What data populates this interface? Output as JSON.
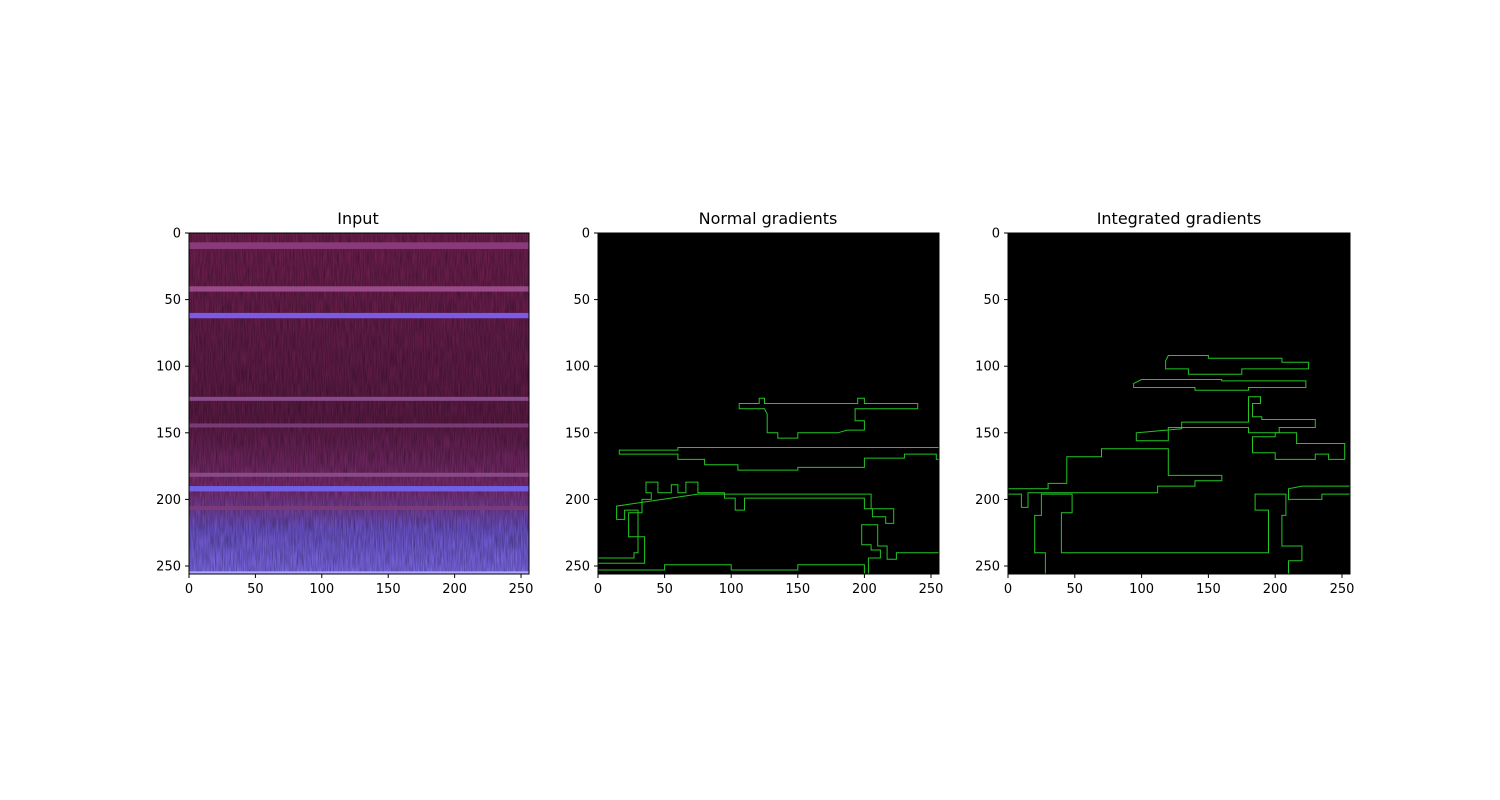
{
  "chart_data": [
    {
      "type": "heatmap",
      "title": "Input",
      "xlim": [
        0,
        256
      ],
      "ylim": [
        256,
        0
      ],
      "xticks": [
        0,
        50,
        100,
        150,
        200,
        250
      ],
      "yticks": [
        0,
        50,
        100,
        150,
        200,
        250
      ],
      "bands": [
        {
          "y": 7,
          "h": 5,
          "color": "#8a3a78"
        },
        {
          "y": 40,
          "h": 4,
          "color": "#9a4a88"
        },
        {
          "y": 60,
          "h": 4,
          "color": "#7a5ae6"
        },
        {
          "y": 123,
          "h": 3,
          "color": "#8a4a8a"
        },
        {
          "y": 143,
          "h": 3,
          "color": "#7a3a78"
        },
        {
          "y": 180,
          "h": 3,
          "color": "#8a4a8a"
        },
        {
          "y": 190,
          "h": 4,
          "color": "#7060e8"
        },
        {
          "y": 205,
          "h": 3,
          "color": "#7a3a78"
        },
        {
          "y": 254,
          "h": 2,
          "color": "#b0a8ff"
        }
      ]
    },
    {
      "type": "heatmap",
      "title": "Normal gradients",
      "xlim": [
        0,
        256
      ],
      "ylim": [
        256,
        0
      ],
      "xticks": [
        0,
        50,
        100,
        150,
        200,
        250
      ],
      "yticks": [
        0,
        50,
        100,
        150,
        200,
        250
      ],
      "contour_color": "#22c522",
      "contours": [
        [
          [
            106,
            128
          ],
          [
            106,
            132
          ],
          [
            125,
            132
          ],
          [
            127,
            136
          ],
          [
            127,
            150
          ],
          [
            135,
            150
          ],
          [
            135,
            154
          ],
          [
            150,
            154
          ],
          [
            150,
            150
          ],
          [
            165,
            150
          ],
          [
            180,
            150
          ],
          [
            187,
            148
          ],
          [
            200,
            148
          ],
          [
            200,
            141
          ],
          [
            193,
            141
          ],
          [
            193,
            132
          ],
          [
            240,
            132
          ],
          [
            240,
            128
          ],
          [
            200,
            128
          ],
          [
            200,
            124
          ],
          [
            195,
            124
          ],
          [
            195,
            128
          ],
          [
            125,
            128
          ],
          [
            125,
            124
          ],
          [
            121,
            124
          ],
          [
            121,
            128
          ]
        ],
        [
          [
            16,
            163
          ],
          [
            16,
            166
          ],
          [
            60,
            166
          ],
          [
            60,
            170
          ],
          [
            80,
            170
          ],
          [
            80,
            174
          ],
          [
            105,
            174
          ],
          [
            105,
            178
          ],
          [
            150,
            178
          ],
          [
            150,
            176
          ],
          [
            200,
            176
          ],
          [
            200,
            169
          ],
          [
            230,
            169
          ],
          [
            230,
            166
          ],
          [
            254,
            166
          ],
          [
            254,
            170
          ],
          [
            256,
            170
          ],
          [
            256,
            161
          ],
          [
            60,
            161
          ],
          [
            60,
            163
          ]
        ],
        [
          [
            14,
            205
          ],
          [
            14,
            215
          ],
          [
            20,
            215
          ],
          [
            20,
            208
          ],
          [
            30,
            208
          ],
          [
            30,
            240
          ],
          [
            27,
            240
          ],
          [
            27,
            244
          ],
          [
            0,
            244
          ],
          [
            0,
            248
          ],
          [
            35,
            248
          ],
          [
            35,
            228
          ],
          [
            23,
            228
          ],
          [
            23,
            210
          ],
          [
            33,
            210
          ],
          [
            33,
            200
          ],
          [
            40,
            200
          ],
          [
            40,
            195
          ],
          [
            36,
            195
          ],
          [
            36,
            187
          ],
          [
            45,
            187
          ],
          [
            45,
            195
          ],
          [
            55,
            195
          ],
          [
            55,
            189
          ],
          [
            60,
            189
          ],
          [
            60,
            195
          ],
          [
            66,
            195
          ],
          [
            66,
            187
          ],
          [
            75,
            187
          ],
          [
            75,
            195
          ],
          [
            95,
            195
          ],
          [
            95,
            199
          ],
          [
            103,
            199
          ],
          [
            103,
            208
          ],
          [
            110,
            208
          ],
          [
            110,
            199
          ],
          [
            200,
            199
          ],
          [
            200,
            207
          ],
          [
            206,
            207
          ],
          [
            206,
            213
          ],
          [
            216,
            213
          ],
          [
            216,
            218
          ],
          [
            222,
            218
          ],
          [
            222,
            207
          ],
          [
            205,
            207
          ],
          [
            205,
            196
          ],
          [
            75,
            196
          ]
        ],
        [
          [
            198,
            219
          ],
          [
            198,
            234
          ],
          [
            205,
            234
          ],
          [
            205,
            238
          ],
          [
            212,
            238
          ],
          [
            212,
            244
          ],
          [
            203,
            244
          ],
          [
            203,
            256
          ],
          [
            256,
            256
          ],
          [
            256,
            240
          ],
          [
            224,
            240
          ],
          [
            224,
            245
          ],
          [
            217,
            245
          ],
          [
            217,
            235
          ],
          [
            210,
            235
          ],
          [
            210,
            219
          ]
        ],
        [
          [
            0,
            250
          ],
          [
            0,
            256
          ],
          [
            200,
            256
          ],
          [
            200,
            249
          ],
          [
            150,
            249
          ],
          [
            150,
            253
          ],
          [
            100,
            253
          ],
          [
            100,
            249
          ],
          [
            50,
            249
          ],
          [
            50,
            253
          ],
          [
            0,
            253
          ]
        ]
      ]
    },
    {
      "type": "heatmap",
      "title": "Integrated gradients",
      "xlim": [
        0,
        256
      ],
      "ylim": [
        256,
        0
      ],
      "xticks": [
        0,
        50,
        100,
        150,
        200,
        250
      ],
      "yticks": [
        0,
        50,
        100,
        150,
        200,
        250
      ],
      "contour_color": "#22c522",
      "contours": [
        [
          [
            118,
            96
          ],
          [
            118,
            102
          ],
          [
            135,
            102
          ],
          [
            135,
            106
          ],
          [
            175,
            106
          ],
          [
            175,
            102
          ],
          [
            225,
            102
          ],
          [
            225,
            97
          ],
          [
            205,
            97
          ],
          [
            205,
            94
          ],
          [
            150,
            94
          ],
          [
            150,
            92
          ],
          [
            120,
            92
          ]
        ],
        [
          [
            94,
            113
          ],
          [
            94,
            116
          ],
          [
            140,
            116
          ],
          [
            140,
            118
          ],
          [
            180,
            118
          ],
          [
            180,
            116
          ],
          [
            223,
            116
          ],
          [
            223,
            111
          ],
          [
            160,
            111
          ],
          [
            160,
            110
          ],
          [
            100,
            110
          ]
        ],
        [
          [
            96,
            150
          ],
          [
            96,
            156
          ],
          [
            120,
            156
          ],
          [
            120,
            146
          ],
          [
            180,
            146
          ],
          [
            180,
            150
          ],
          [
            203,
            150
          ],
          [
            203,
            146
          ],
          [
            230,
            146
          ],
          [
            230,
            140
          ],
          [
            190,
            140
          ],
          [
            190,
            138
          ],
          [
            183,
            138
          ],
          [
            183,
            128
          ],
          [
            189,
            128
          ],
          [
            189,
            123
          ],
          [
            180,
            123
          ],
          [
            180,
            142
          ],
          [
            130,
            142
          ],
          [
            130,
            147
          ]
        ],
        [
          [
            44,
            168
          ],
          [
            44,
            188
          ],
          [
            30,
            188
          ],
          [
            30,
            192
          ],
          [
            0,
            192
          ],
          [
            0,
            196
          ],
          [
            10,
            196
          ],
          [
            10,
            206
          ],
          [
            15,
            206
          ],
          [
            15,
            195
          ],
          [
            112,
            195
          ],
          [
            112,
            190
          ],
          [
            140,
            190
          ],
          [
            140,
            186
          ],
          [
            160,
            186
          ],
          [
            160,
            182
          ],
          [
            120,
            182
          ],
          [
            120,
            162
          ],
          [
            70,
            162
          ],
          [
            70,
            168
          ]
        ],
        [
          [
            183,
            153
          ],
          [
            183,
            165
          ],
          [
            200,
            165
          ],
          [
            200,
            170
          ],
          [
            230,
            170
          ],
          [
            230,
            166
          ],
          [
            240,
            166
          ],
          [
            240,
            170
          ],
          [
            252,
            170
          ],
          [
            252,
            158
          ],
          [
            216,
            158
          ],
          [
            216,
            150
          ],
          [
            200,
            150
          ],
          [
            200,
            153
          ]
        ],
        [
          [
            25,
            196
          ],
          [
            25,
            212
          ],
          [
            20,
            212
          ],
          [
            20,
            240
          ],
          [
            28,
            240
          ],
          [
            28,
            256
          ],
          [
            210,
            256
          ],
          [
            210,
            246
          ],
          [
            220,
            246
          ],
          [
            220,
            235
          ],
          [
            205,
            235
          ],
          [
            205,
            212
          ],
          [
            208,
            212
          ],
          [
            208,
            196
          ],
          [
            185,
            196
          ],
          [
            185,
            208
          ],
          [
            195,
            208
          ],
          [
            195,
            240
          ],
          [
            40,
            240
          ],
          [
            40,
            210
          ],
          [
            48,
            210
          ],
          [
            48,
            196
          ]
        ],
        [
          [
            210,
            192
          ],
          [
            210,
            200
          ],
          [
            235,
            200
          ],
          [
            235,
            196
          ],
          [
            256,
            196
          ],
          [
            256,
            190
          ],
          [
            220,
            190
          ]
        ]
      ]
    }
  ]
}
